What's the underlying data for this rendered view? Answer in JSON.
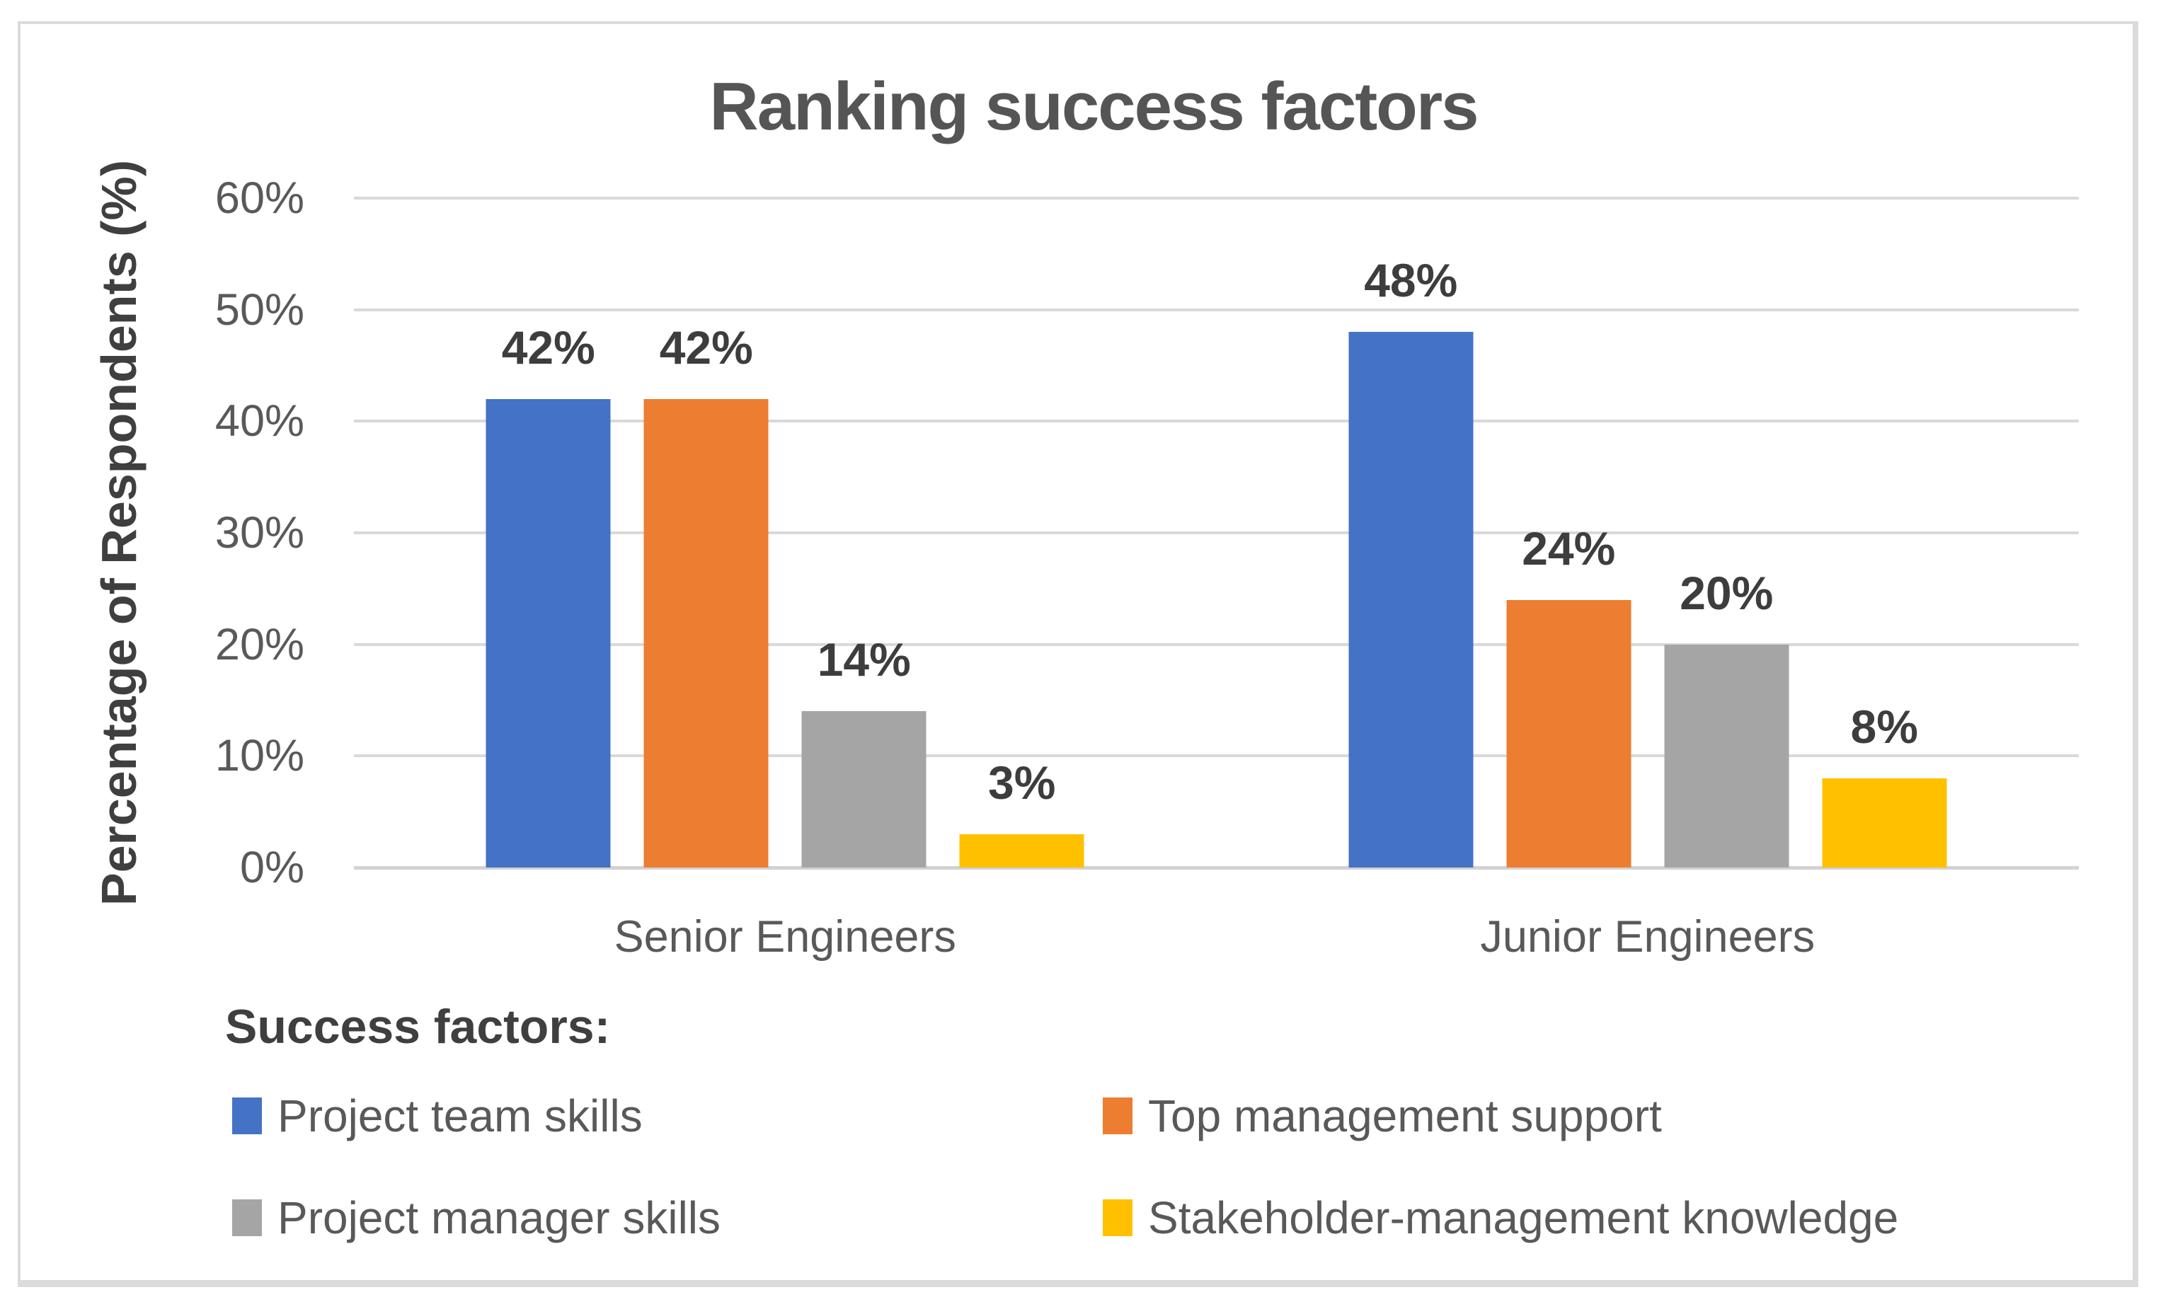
{
  "chart_data": {
    "type": "bar",
    "title": "Ranking success factors",
    "ylabel": "Percentage of Respondents (%)",
    "xlabel": "",
    "categories": [
      "Senior Engineers",
      "Junior Engineers"
    ],
    "series": [
      {
        "name": "Project team skills",
        "color": "#4472C4",
        "values": [
          42,
          48
        ],
        "labels": [
          "42%",
          "48%"
        ]
      },
      {
        "name": "Top management support",
        "color": "#ED7D31",
        "values": [
          42,
          24
        ],
        "labels": [
          "42%",
          "24%"
        ]
      },
      {
        "name": "Project manager skills",
        "color": "#A5A5A5",
        "values": [
          14,
          20
        ],
        "labels": [
          "14%",
          "20%"
        ]
      },
      {
        "name": "Stakeholder-management knowledge",
        "color": "#FFC000",
        "values": [
          3,
          8
        ],
        "labels": [
          "3%",
          "8%"
        ]
      }
    ],
    "ylim": [
      0,
      60
    ],
    "ytick_labels": [
      "60%",
      "50%",
      "40%",
      "30%",
      "20%",
      "10%",
      "0%"
    ],
    "grid": true,
    "gridline_color": "#D9D9D9",
    "baseline_color": "#D2D2D2",
    "legend_title": "Success factors:",
    "legend_position": "bottom-left",
    "text_color": "#595959",
    "label_color": "#3D3D3D"
  }
}
